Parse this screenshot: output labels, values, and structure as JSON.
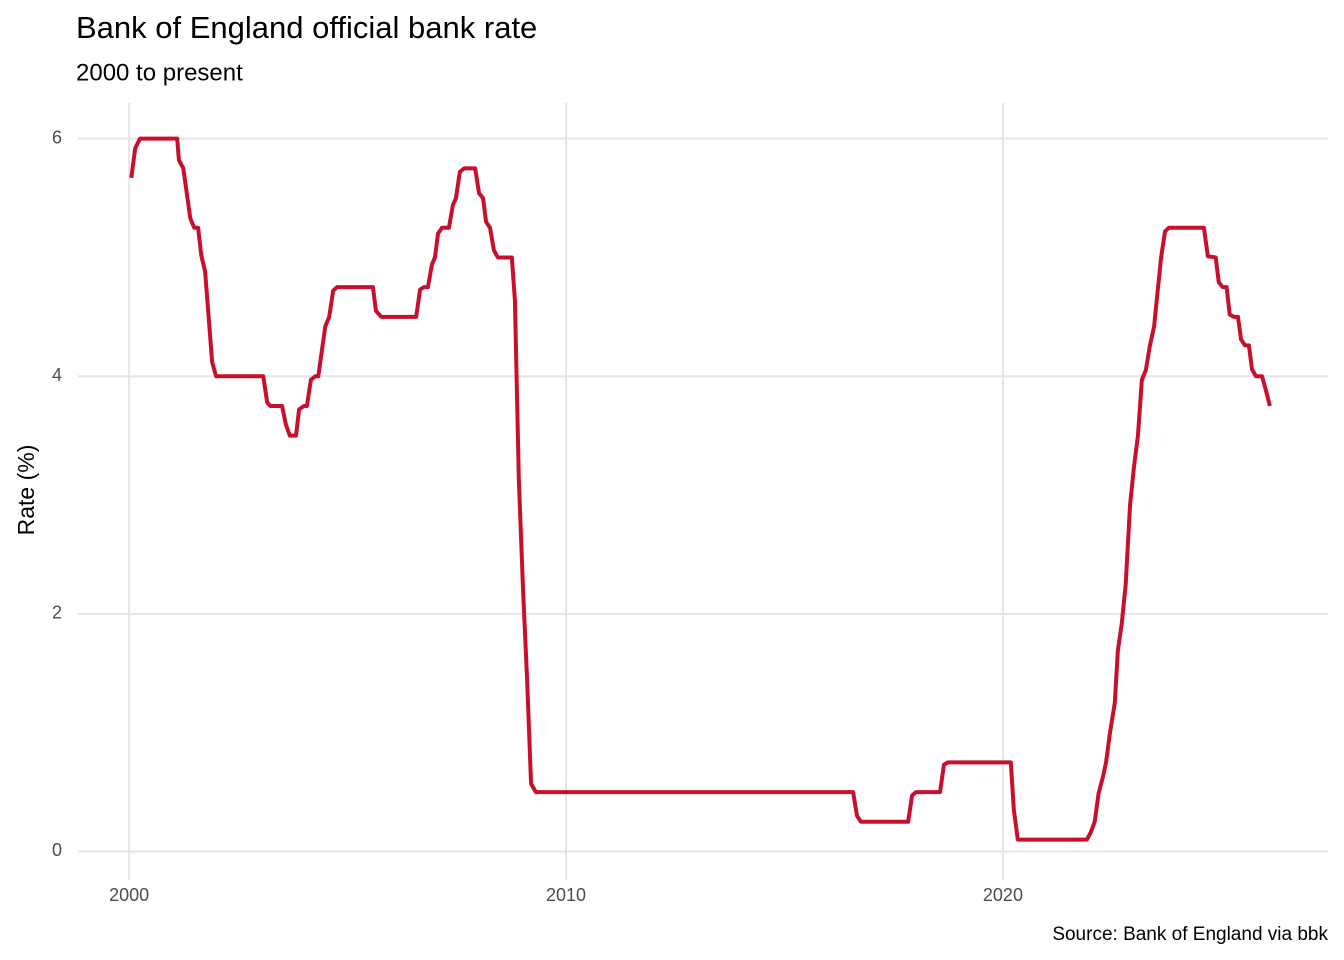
{
  "chart_data": {
    "type": "line",
    "title": "Bank of England official bank rate",
    "subtitle": "2000 to present",
    "y_label": "Rate (%)",
    "caption": "Source: Bank of England via bbk",
    "xlim": [
      1998.83,
      2027.44
    ],
    "ylim": [
      -0.24,
      6.3
    ],
    "xticks": [
      2000,
      2010,
      2020
    ],
    "yticks": [
      0,
      2,
      4,
      6
    ],
    "grid": true,
    "x": [
      2000.05,
      2000.14,
      2000.25,
      2001.1,
      2001.14,
      2001.24,
      2001.4,
      2001.49,
      2001.58,
      2001.65,
      2001.74,
      2001.9,
      2001.99,
      2003.07,
      2003.16,
      2003.23,
      2003.5,
      2003.59,
      2003.68,
      2003.82,
      2003.89,
      2004.0,
      2004.07,
      2004.16,
      2004.26,
      2004.33,
      2004.49,
      2004.58,
      2004.67,
      2004.76,
      2005.58,
      2005.65,
      2005.77,
      2006.57,
      2006.66,
      2006.75,
      2006.84,
      2006.93,
      2007.0,
      2007.07,
      2007.16,
      2007.32,
      2007.41,
      2007.48,
      2007.57,
      2007.67,
      2007.92,
      2008.01,
      2008.1,
      2008.17,
      2008.26,
      2008.35,
      2008.44,
      2008.76,
      2008.83,
      2008.92,
      2009.02,
      2009.11,
      2009.2,
      2009.31,
      2016.57,
      2016.66,
      2016.75,
      2017.83,
      2017.92,
      2018.01,
      2018.56,
      2018.65,
      2018.74,
      2020.18,
      2020.25,
      2020.34,
      2021.92,
      2022.01,
      2022.1,
      2022.19,
      2022.29,
      2022.36,
      2022.45,
      2022.56,
      2022.63,
      2022.72,
      2022.81,
      2022.91,
      2023.0,
      2023.09,
      2023.18,
      2023.27,
      2023.36,
      2023.46,
      2023.52,
      2023.62,
      2023.71,
      2023.8,
      2024.6,
      2024.69,
      2024.87,
      2024.94,
      2025.03,
      2025.12,
      2025.19,
      2025.29,
      2025.38,
      2025.45,
      2025.54,
      2025.63,
      2025.7,
      2025.79,
      2025.93,
      2026.02,
      2026.11
    ],
    "series": [
      {
        "name": "Bank rate",
        "color": "#c8102e",
        "values": [
          5.67,
          5.92,
          6.0,
          6.0,
          5.82,
          5.75,
          5.33,
          5.25,
          5.25,
          5.02,
          4.88,
          4.12,
          4.0,
          4.0,
          3.78,
          3.75,
          3.75,
          3.59,
          3.5,
          3.5,
          3.72,
          3.75,
          3.75,
          3.97,
          4.0,
          4.0,
          4.42,
          4.5,
          4.72,
          4.75,
          4.75,
          4.55,
          4.5,
          4.5,
          4.73,
          4.75,
          4.75,
          4.94,
          5.0,
          5.2,
          5.25,
          5.25,
          5.44,
          5.5,
          5.72,
          5.75,
          5.75,
          5.54,
          5.5,
          5.3,
          5.25,
          5.06,
          5.0,
          5.0,
          4.64,
          3.13,
          2.17,
          1.44,
          0.57,
          0.5,
          0.5,
          0.3,
          0.25,
          0.25,
          0.47,
          0.5,
          0.5,
          0.73,
          0.75,
          0.75,
          0.35,
          0.1,
          0.1,
          0.16,
          0.25,
          0.49,
          0.63,
          0.75,
          1.0,
          1.25,
          1.69,
          1.92,
          2.25,
          2.92,
          3.24,
          3.5,
          3.97,
          4.05,
          4.25,
          4.42,
          4.64,
          5.0,
          5.22,
          5.25,
          5.25,
          5.01,
          5.0,
          4.79,
          4.75,
          4.75,
          4.52,
          4.5,
          4.5,
          4.31,
          4.26,
          4.26,
          4.06,
          4.0,
          4.0,
          3.88,
          3.75
        ]
      }
    ]
  }
}
